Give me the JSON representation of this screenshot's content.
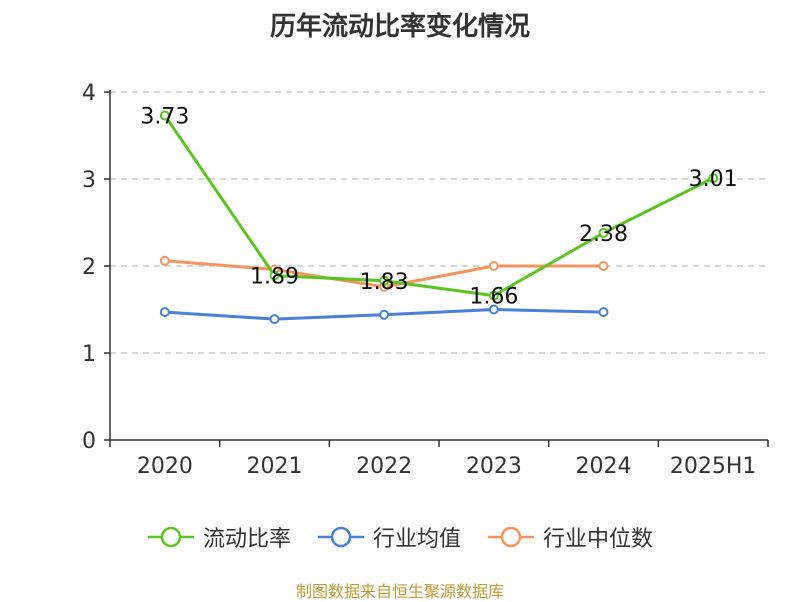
{
  "chart_data": {
    "type": "line",
    "title": "历年流动比率变化情况",
    "categories": [
      "2020",
      "2021",
      "2022",
      "2023",
      "2024",
      "2025H1"
    ],
    "y_ticks": [
      "0",
      "1",
      "2",
      "3",
      "4"
    ],
    "ylim": [
      0,
      4
    ],
    "grid": true,
    "legend_position": "bottom",
    "series": [
      {
        "name": "流动比率",
        "color": "#5ec423",
        "values": [
          3.73,
          1.89,
          1.83,
          1.66,
          2.38,
          3.01
        ],
        "labels": [
          "3.73",
          "1.89",
          "1.83",
          "1.66",
          "2.38",
          "3.01"
        ]
      },
      {
        "name": "行业均值",
        "color": "#4a7fdb",
        "values": [
          1.47,
          1.39,
          1.44,
          1.5,
          1.47,
          null
        ]
      },
      {
        "name": "行业中位数",
        "color": "#f39560",
        "values": [
          2.06,
          1.96,
          1.76,
          2.0,
          2.0,
          null
        ]
      }
    ]
  },
  "source": "制图数据来自恒生聚源数据库"
}
